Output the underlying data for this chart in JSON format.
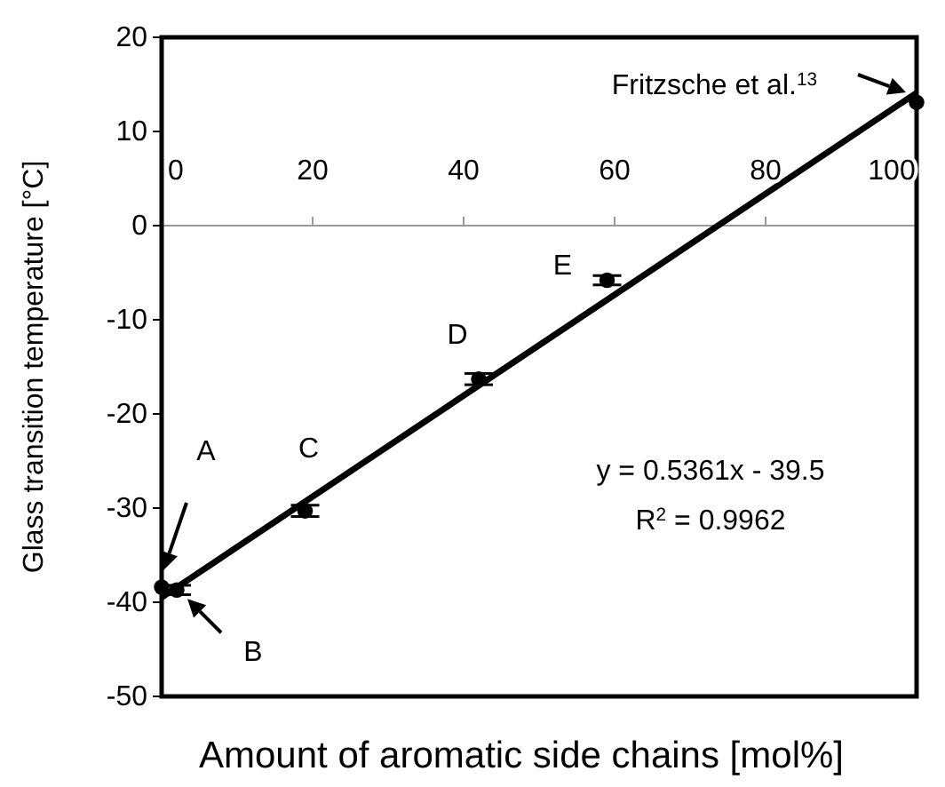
{
  "chart_data": {
    "type": "scatter",
    "xlabel": "Amount of aromatic side chains [mol%]",
    "ylabel": "Glass transition temperature [°C]",
    "xlim": [
      0,
      100
    ],
    "xticks": [
      0,
      20,
      40,
      60,
      80,
      100
    ],
    "ylim": [
      -50,
      20
    ],
    "yticks": [
      -50,
      -40,
      -30,
      -20,
      -10,
      0,
      10,
      20
    ],
    "grid": false,
    "series": [
      {
        "marker": "circle",
        "color": "#000000",
        "x": [
          0,
          2,
          19,
          42,
          59,
          100
        ],
        "values": [
          -38.4,
          -38.7,
          -30.3,
          -16.3,
          -5.8,
          13.1
        ],
        "errors": [
          null,
          0.5,
          0.6,
          0.6,
          0.5,
          null
        ]
      },
      {
        "type": "line",
        "marker": "none",
        "color": "#000000",
        "line_style": "solid",
        "x": [
          0,
          100
        ],
        "values": [
          -39.5,
          14.1
        ]
      }
    ],
    "annotations": [
      {
        "text": "B",
        "x": 2,
        "y": -38.7
      },
      {
        "text": "C",
        "x": 19,
        "y": -30.3
      },
      {
        "text": "D",
        "x": 42,
        "y": -16.3
      },
      {
        "text": "E",
        "x": 59,
        "y": -5.8
      },
      "A",
      "Fritzsche et al.$^{13}$",
      "y = 0.5361x - 39.5",
      "R$^{2}$ = 0.9962"
    ]
  }
}
